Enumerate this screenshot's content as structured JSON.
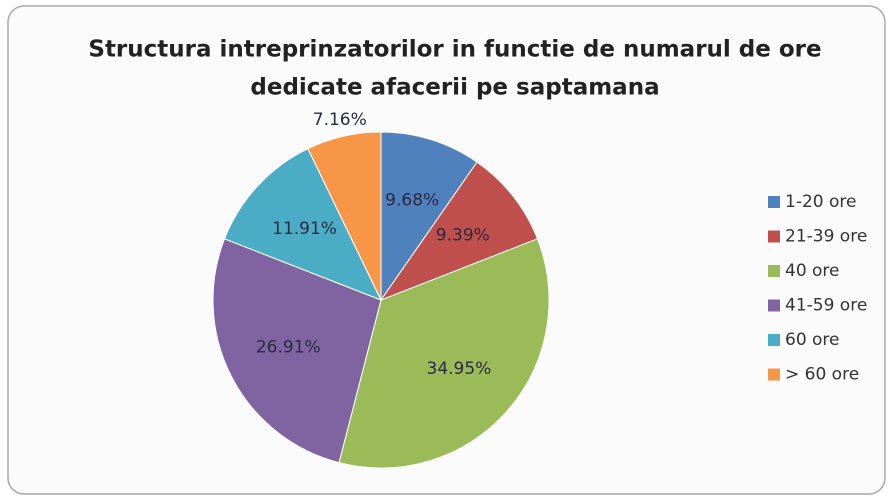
{
  "chart_data": {
    "type": "pie",
    "title": [
      "Structura intreprinzatorilor in functie de numarul de ore",
      "dedicate afacerii pe saptamana"
    ],
    "categories": [
      "1-20 ore",
      "21-39 ore",
      "40 ore",
      "41-59 ore",
      "60 ore",
      "> 60 ore"
    ],
    "values": [
      9.68,
      9.39,
      34.95,
      26.91,
      11.91,
      7.16
    ],
    "value_labels": [
      "9.68%",
      "9.39%",
      "34.95%",
      "26.91%",
      "11.91%",
      "7.16%"
    ],
    "colors": [
      "#4f81bd",
      "#c0504d",
      "#9bbb59",
      "#8064a2",
      "#4bacc6",
      "#f79646"
    ],
    "legend": "right"
  }
}
